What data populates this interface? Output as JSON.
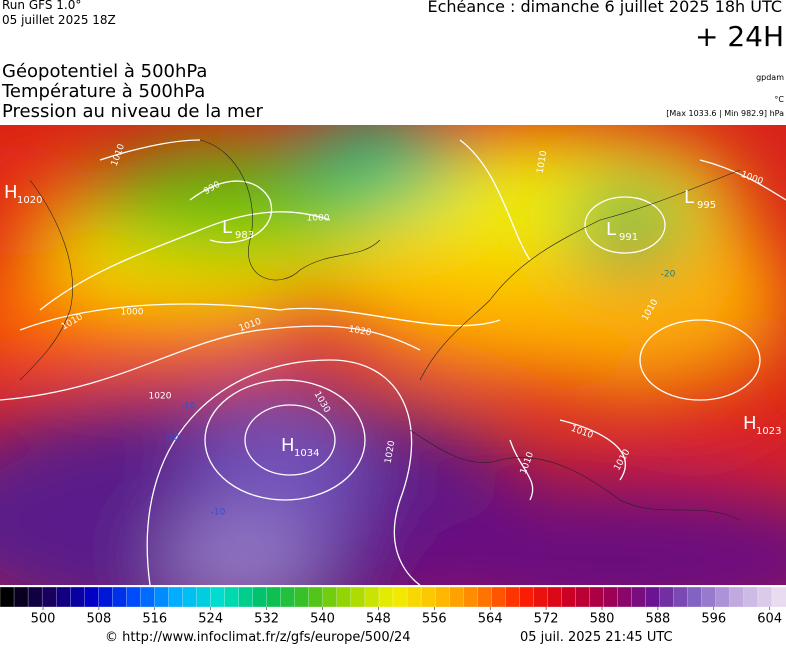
{
  "header": {
    "run": "Run GFS 1.0°",
    "run_date": "05 juillet 2025 18Z",
    "valid": "Echéance : dimanche 6 juillet 2025 18h UTC",
    "lead": "+ 24H",
    "fields": [
      "Géopotentiel à 500hPa",
      "Température à 500hPa",
      "Pression au niveau de la mer"
    ],
    "units": [
      "gpdam",
      "°C",
      "[Max 1033.6 | Min 982.9] hPa"
    ]
  },
  "map": {
    "centers": [
      {
        "letter": "H",
        "value": 1020
      },
      {
        "letter": "L",
        "value": 983
      },
      {
        "letter": "L",
        "value": 991
      },
      {
        "letter": "L",
        "value": 995
      },
      {
        "letter": "H",
        "value": 1034
      },
      {
        "letter": "H",
        "value": 1023
      }
    ],
    "isobar_labels": [
      1010,
      990,
      1000,
      1000,
      1010,
      1010,
      1020,
      1020,
      1030,
      1020,
      1010,
      1000,
      1010,
      1010,
      1010,
      1010
    ],
    "temperature_labels": [
      -20,
      -10,
      -10,
      -10
    ]
  },
  "colorbar": {
    "ticks": [
      500,
      508,
      516,
      524,
      532,
      540,
      548,
      556,
      564,
      572,
      580,
      588,
      596,
      604
    ],
    "palette": [
      "#000000",
      "#1a0060",
      "#0000c8",
      "#0050ff",
      "#00b4ff",
      "#00e0c8",
      "#00c060",
      "#40c020",
      "#a0d800",
      "#f0f000",
      "#ffc000",
      "#ff8000",
      "#ff2000",
      "#d00020",
      "#a00050",
      "#6a1090",
      "#8060c0",
      "#c0a8e0",
      "#e8dcf0"
    ]
  },
  "footer": {
    "source": "© http://www.infoclimat.fr/z/gfs/europe/500/24",
    "timestamp": "05 juil. 2025 21:45 UTC"
  }
}
